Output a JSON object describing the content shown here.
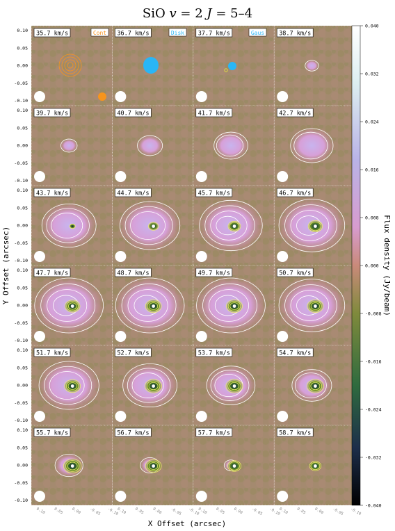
{
  "figure": {
    "title_species": "SiO",
    "title_v": "v",
    "title_v_val": " = 2",
    "title_J": "J",
    "title_J_val": " = 5–4",
    "xlabel": "X Offset (arcsec)",
    "ylabel": "Y Offset (arcsec)",
    "cbar_label": "Flux density (Jy/beam)"
  },
  "legend": {
    "cont": "Cont",
    "disk": "Disk",
    "gaus": "Gaus"
  },
  "colors": {
    "cont": "#f7941d",
    "disk": "#29b6f6",
    "gaus": "#29b6f6",
    "background": "#9e8a70",
    "contour": "#ffffff"
  },
  "chart_data": {
    "type": "heatmap",
    "title": "SiO v = 2 J = 5–4",
    "xlabel": "X Offset (arcsec)",
    "ylabel": "Y Offset (arcsec)",
    "xlim": [
      0.1,
      -0.1
    ],
    "ylim": [
      -0.1,
      0.1
    ],
    "yticks": [
      "0.10",
      "0.05",
      "0.00",
      "-0.05",
      "-0.10"
    ],
    "xticks": [
      "0.10",
      "0.05",
      "0.00",
      "-0.05",
      "-0.10"
    ],
    "colorbar": {
      "label": "Flux density (Jy/beam)",
      "range": [
        -0.04,
        0.04
      ],
      "ticks": [
        "0.040",
        "0.032",
        "0.024",
        "0.016",
        "0.008",
        "0.000",
        "-0.008",
        "-0.016",
        "-0.024",
        "-0.032",
        "-0.040"
      ]
    },
    "channels": [
      {
        "velocity": "35.7 km/s",
        "emission": 0.0,
        "absorption": 0.0
      },
      {
        "velocity": "36.7 km/s",
        "emission": 0.0,
        "absorption": 0.0
      },
      {
        "velocity": "37.7 km/s",
        "emission": 0.0,
        "absorption": 0.0
      },
      {
        "velocity": "38.7 km/s",
        "emission": 0.05,
        "absorption": 0.0
      },
      {
        "velocity": "39.7 km/s",
        "emission": 0.1,
        "absorption": 0.0
      },
      {
        "velocity": "40.7 km/s",
        "emission": 0.25,
        "absorption": 0.0
      },
      {
        "velocity": "41.7 km/s",
        "emission": 0.4,
        "absorption": 0.0
      },
      {
        "velocity": "42.7 km/s",
        "emission": 0.55,
        "absorption": 0.0
      },
      {
        "velocity": "43.7 km/s",
        "emission": 0.75,
        "absorption": 0.1
      },
      {
        "velocity": "44.7 km/s",
        "emission": 0.85,
        "absorption": 0.35
      },
      {
        "velocity": "45.7 km/s",
        "emission": 0.9,
        "absorption": 0.5
      },
      {
        "velocity": "46.7 km/s",
        "emission": 0.95,
        "absorption": 0.6
      },
      {
        "velocity": "47.7 km/s",
        "emission": 1.0,
        "absorption": 0.65
      },
      {
        "velocity": "48.7 km/s",
        "emission": 1.0,
        "absorption": 0.7
      },
      {
        "velocity": "49.7 km/s",
        "emission": 1.0,
        "absorption": 0.7
      },
      {
        "velocity": "50.7 km/s",
        "emission": 0.95,
        "absorption": 0.7
      },
      {
        "velocity": "51.7 km/s",
        "emission": 0.85,
        "absorption": 0.7
      },
      {
        "velocity": "52.7 km/s",
        "emission": 0.75,
        "absorption": 0.75
      },
      {
        "velocity": "53.7 km/s",
        "emission": 0.65,
        "absorption": 0.75
      },
      {
        "velocity": "54.7 km/s",
        "emission": 0.5,
        "absorption": 0.75
      },
      {
        "velocity": "55.7 km/s",
        "emission": 0.3,
        "absorption": 0.8
      },
      {
        "velocity": "56.7 km/s",
        "emission": 0.15,
        "absorption": 0.7
      },
      {
        "velocity": "57.7 km/s",
        "emission": 0.05,
        "absorption": 0.55
      },
      {
        "velocity": "58.7 km/s",
        "emission": 0.0,
        "absorption": 0.45
      }
    ]
  }
}
